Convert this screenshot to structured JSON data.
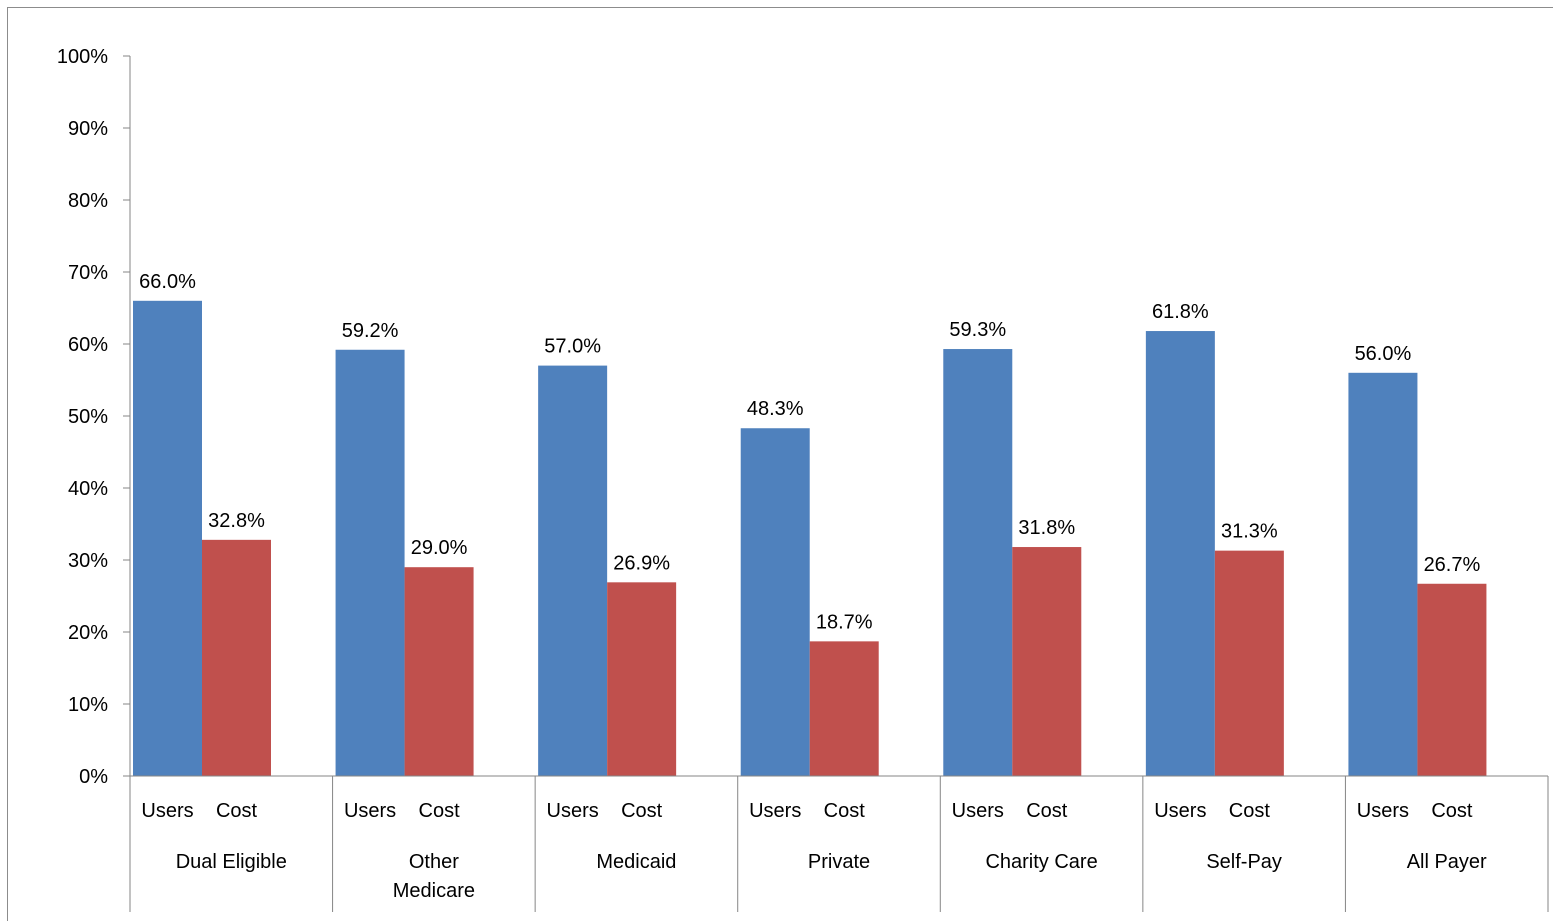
{
  "chart_data": {
    "type": "bar",
    "groups": [
      "Dual Eligible",
      "Other Medicare",
      "Medicaid",
      "Private",
      "Charity Care",
      "Self-Pay",
      "All Payer"
    ],
    "groups_display": [
      [
        "Dual Eligible"
      ],
      [
        "Other",
        "Medicare"
      ],
      [
        "Medicaid"
      ],
      [
        "Private"
      ],
      [
        "Charity Care"
      ],
      [
        "Self-Pay"
      ],
      [
        "All Payer"
      ]
    ],
    "series": [
      {
        "name": "Users",
        "color": "#4f81bd",
        "values": [
          66.0,
          59.2,
          57.0,
          48.3,
          59.3,
          61.8,
          56.0
        ]
      },
      {
        "name": "Cost",
        "color": "#c0504d",
        "values": [
          32.8,
          29.0,
          26.9,
          18.7,
          31.8,
          31.3,
          26.7
        ]
      }
    ],
    "data_labels": [
      [
        "66.0%",
        "59.2%",
        "57.0%",
        "48.3%",
        "59.3%",
        "61.8%",
        "56.0%"
      ],
      [
        "32.8%",
        "29.0%",
        "26.9%",
        "18.7%",
        "31.8%",
        "31.3%",
        "26.7%"
      ]
    ],
    "yticks": [
      "0%",
      "10%",
      "20%",
      "30%",
      "40%",
      "50%",
      "60%",
      "70%",
      "80%",
      "90%",
      "100%"
    ],
    "ylim": [
      0,
      100
    ],
    "title": "",
    "xlabel": "",
    "ylabel": "",
    "grid": false,
    "legend": "none"
  }
}
